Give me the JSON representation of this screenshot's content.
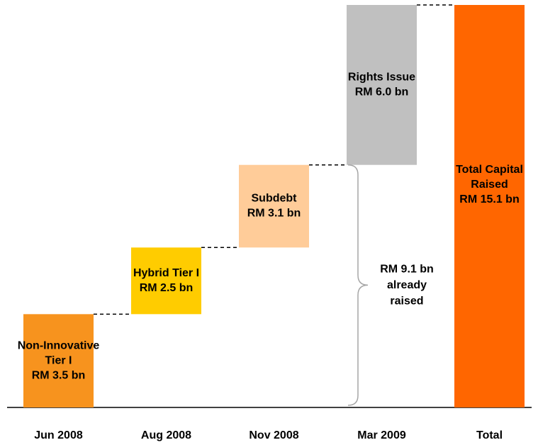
{
  "chart_data": {
    "type": "waterfall",
    "categories": [
      "Jun 2008",
      "Aug 2008",
      "Nov 2008",
      "Mar 2009",
      "Total"
    ],
    "bar_labels": [
      [
        "Non-Innovative",
        "Tier I"
      ],
      [
        "Hybrid Tier I"
      ],
      [
        "Subdebt"
      ],
      [
        "Rights Issue"
      ],
      [
        "Total Capital",
        "Raised"
      ]
    ],
    "values": [
      3.5,
      2.5,
      3.1,
      6.0,
      15.1
    ],
    "value_labels": [
      "RM 3.5 bn",
      "RM 2.5 bn",
      "RM 3.1 bn",
      "RM 6.0 bn",
      "RM 15.1 bn"
    ],
    "measure": [
      "relative",
      "relative",
      "relative",
      "relative",
      "total"
    ],
    "colors": [
      "#F7931E",
      "#FFCC00",
      "#FFCC99",
      "#C0C0C0",
      "#FF6600"
    ],
    "annotation": [
      "RM 9.1 bn",
      "already",
      "raised"
    ]
  }
}
